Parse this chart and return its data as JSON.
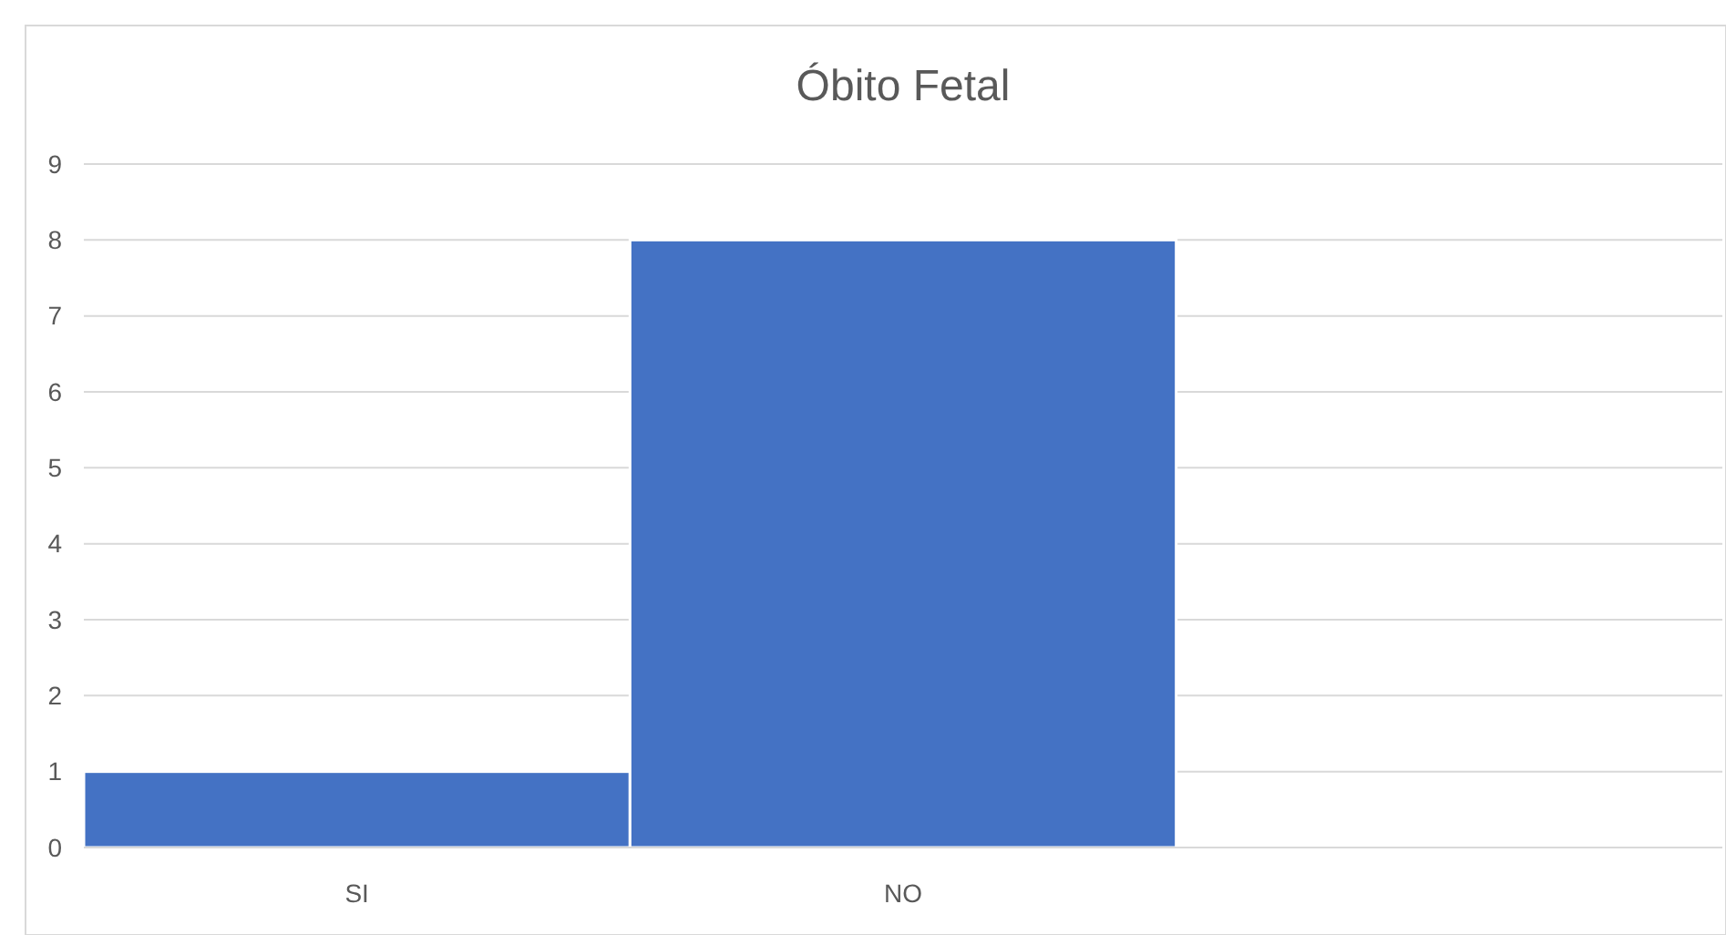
{
  "chart_data": {
    "type": "bar",
    "title": "Óbito Fetal",
    "categories": [
      "SI",
      "NO",
      null
    ],
    "values": [
      1,
      8,
      null
    ],
    "color": "#4472c4",
    "ylim": [
      0,
      9
    ],
    "yticks": [
      0,
      1,
      2,
      3,
      4,
      5,
      6,
      7,
      8,
      9
    ],
    "grid": "y"
  }
}
